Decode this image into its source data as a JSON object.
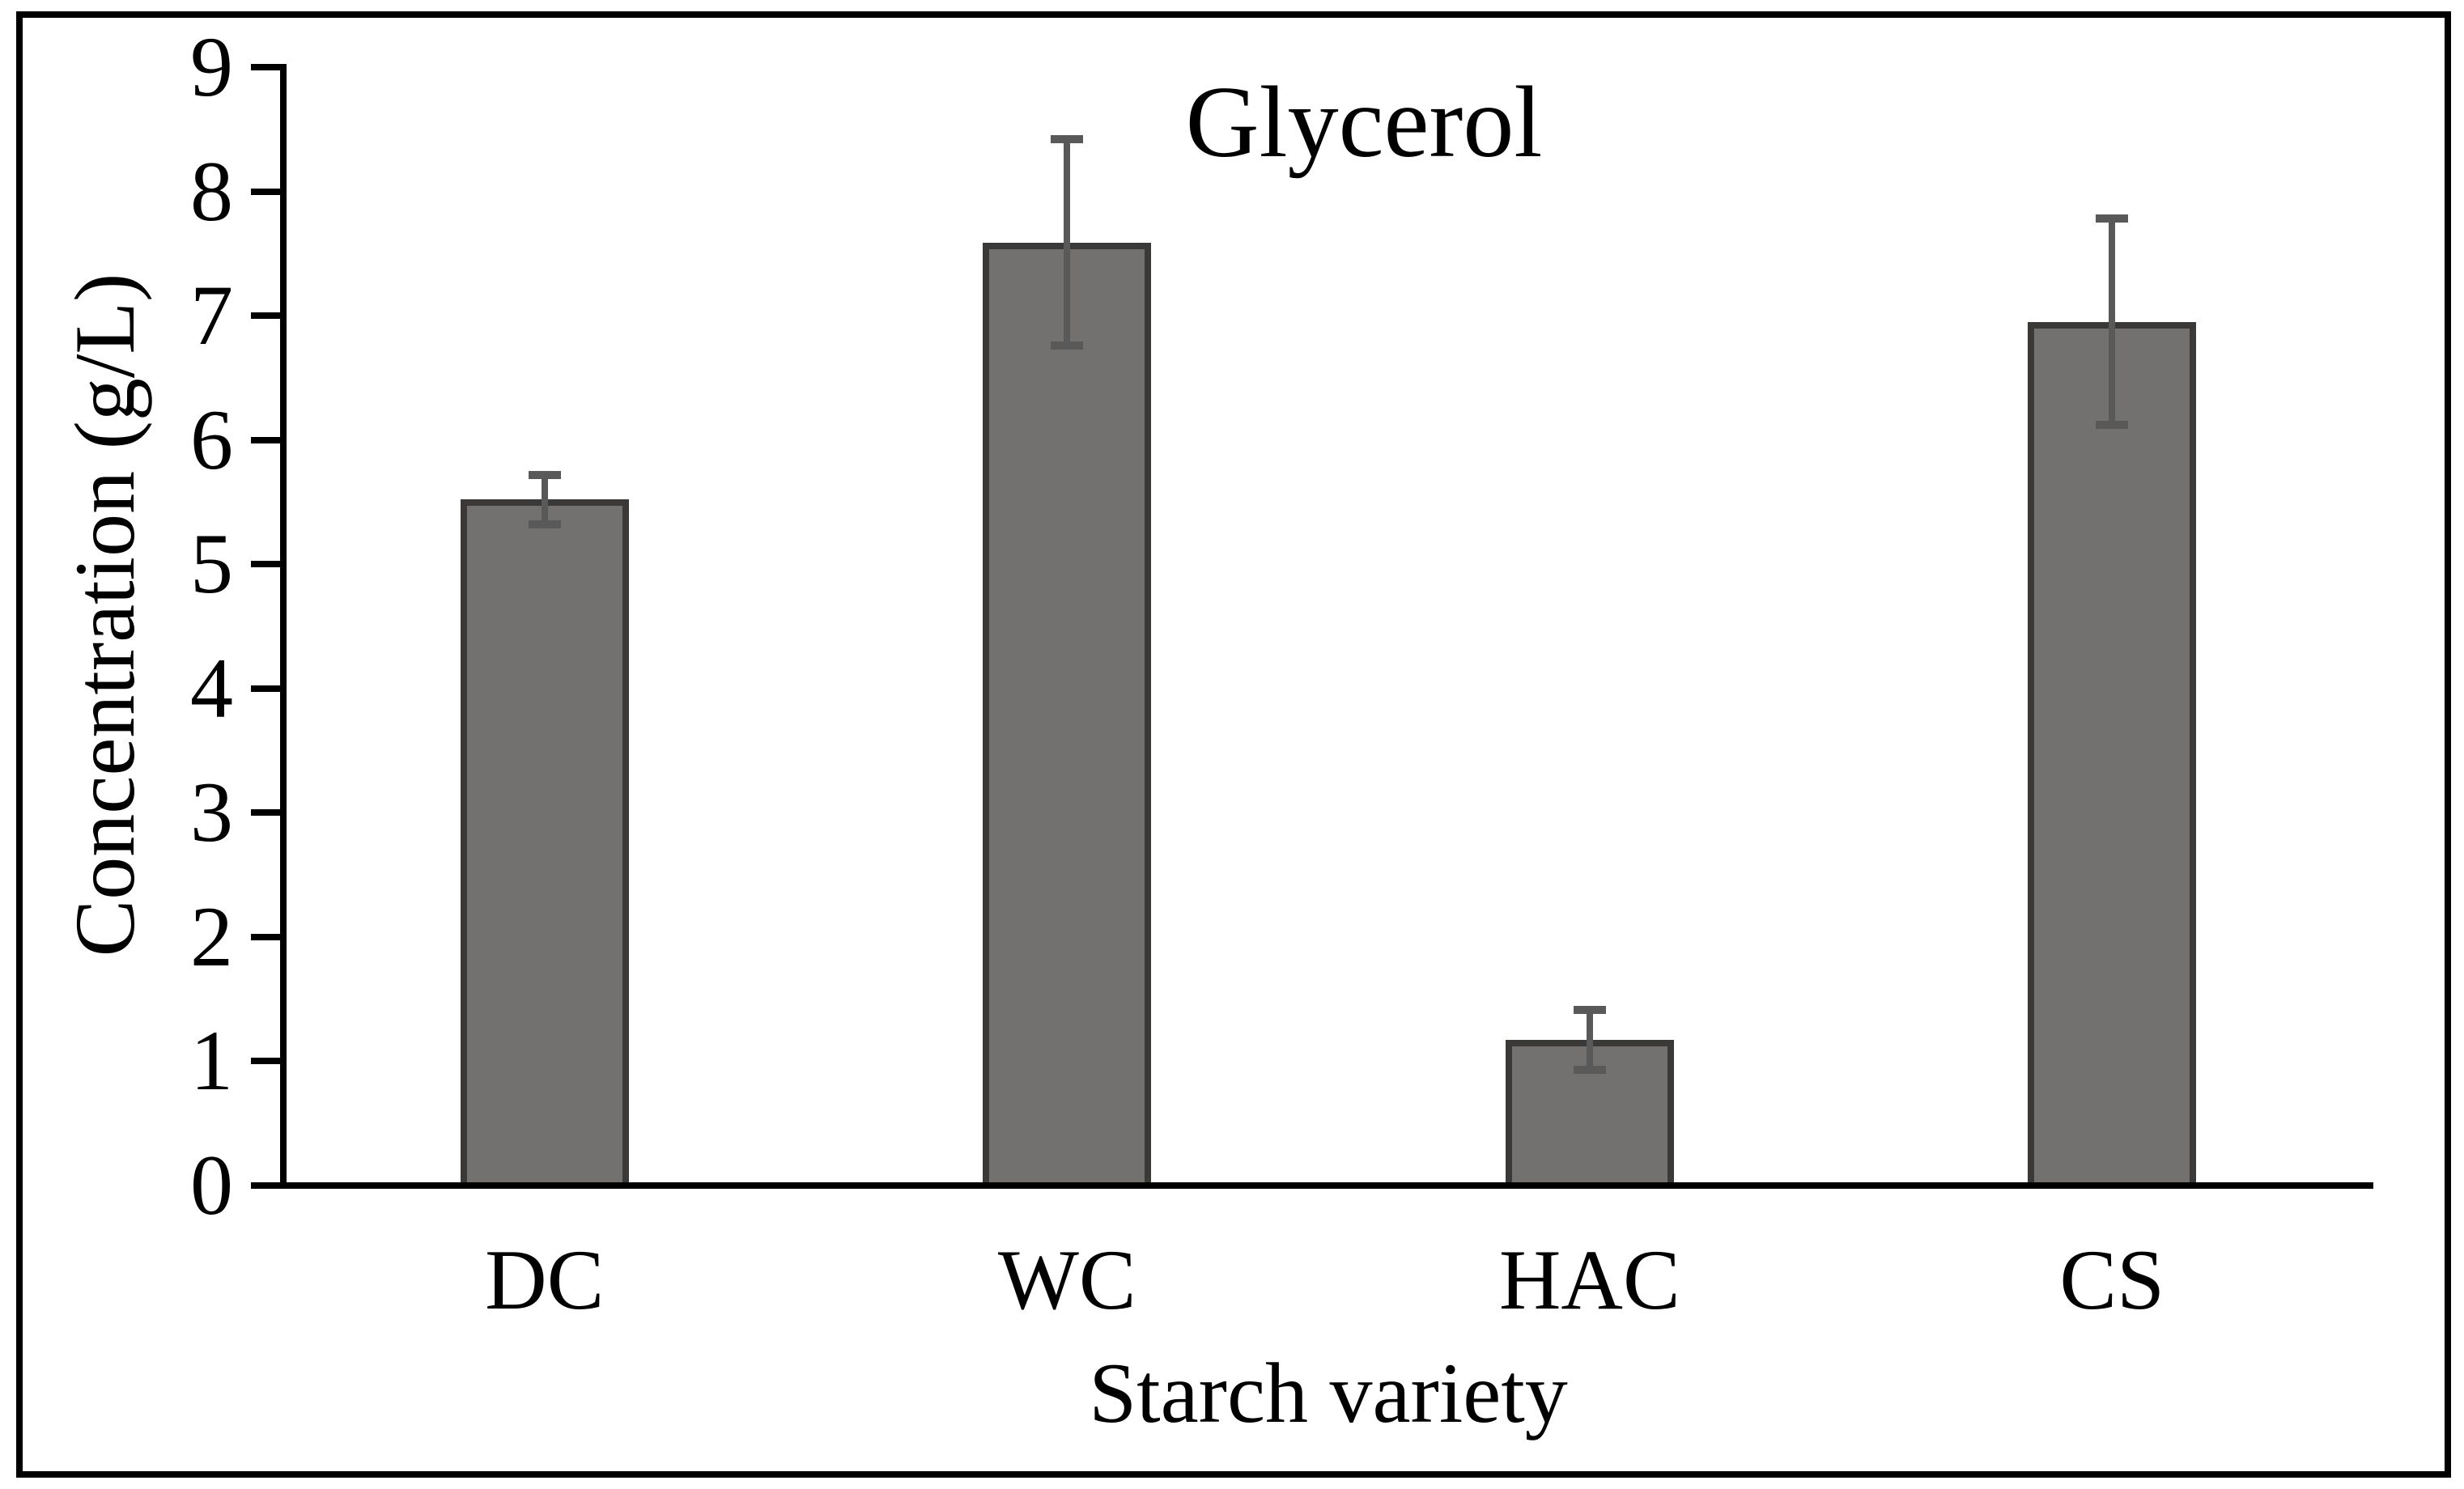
{
  "figure": {
    "background": "#ffffff",
    "border_color": "#000000"
  },
  "chart_data": {
    "type": "bar",
    "title": "Glycerol",
    "xlabel": "Starch variety",
    "ylabel": "Concentration (g/L)",
    "categories": [
      "DC",
      "WC",
      "HAC",
      "CS"
    ],
    "values": [
      5.52,
      7.59,
      1.17,
      6.95
    ],
    "errors": [
      0.2,
      0.83,
      0.24,
      0.83
    ],
    "ylim": [
      0,
      9
    ],
    "yticks": [
      0,
      1,
      2,
      3,
      4,
      5,
      6,
      7,
      8,
      9
    ],
    "grid": false,
    "legend": null,
    "bar_color": "#737070",
    "bar_border_color": "#3B3838",
    "error_bar_color": "#595959",
    "axis_color": "#000000"
  }
}
